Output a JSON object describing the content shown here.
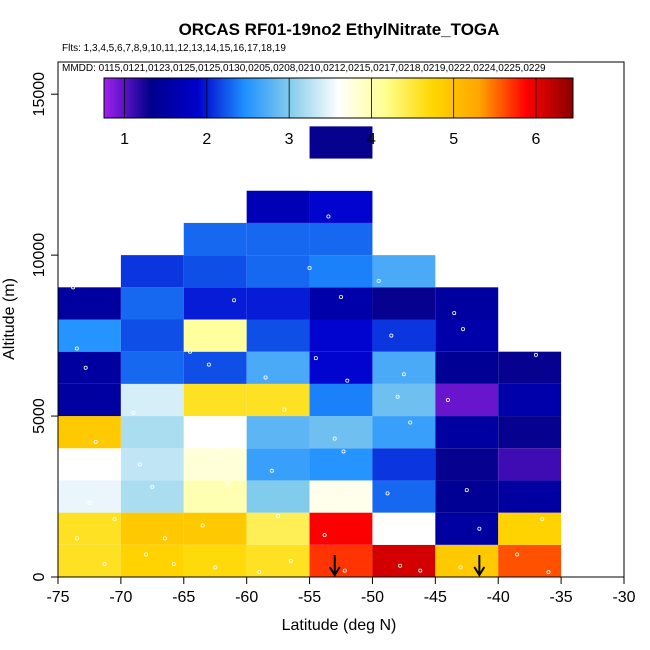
{
  "chart_data": {
    "type": "heatmap",
    "title": "ORCAS RF01-19no2 EthylNitrate_TOGA",
    "flights_label": "Flts: 1,3,4,5,6,7,8,9,10,11,12,13,14,15,16,17,18,19",
    "dates_label": "MMDD: 0115,0121,0123,0125,0125,0130,0205,0208,0210,0212,0215,0217,0218,0219,0222,0224,0225,0229",
    "xlabel": "Latitude (deg N)",
    "ylabel": "Altitude (m)",
    "xlim": [
      -75,
      -30
    ],
    "ylim": [
      0,
      16000
    ],
    "x_ticks": [
      -75,
      -70,
      -65,
      -60,
      -55,
      -50,
      -45,
      -40,
      -35,
      -30
    ],
    "y_ticks": [
      0,
      5000,
      10000,
      15000
    ],
    "colorbar": {
      "min": 0.75,
      "max": 6.45,
      "ticks": [
        1,
        2,
        3,
        4,
        5,
        6
      ],
      "colors": [
        "#a020f0",
        "#00008b",
        "#0000cd",
        "#1e90ff",
        "#87ceeb",
        "#ffffff",
        "#ffff90",
        "#ffd700",
        "#ffa500",
        "#ff0000",
        "#8b0000"
      ]
    },
    "bin_width_deg": 5,
    "bin_height_m": 1000,
    "columns": [
      {
        "lon_min": -75,
        "cells": [
          4.6,
          4.6,
          3.5,
          3.6,
          4.9,
          1.5,
          1.5,
          2.5,
          1.5
        ]
      },
      {
        "lon_min": -70,
        "cells": [
          4.8,
          4.9,
          3.2,
          3.3,
          3.2,
          3.4,
          2.3,
          2.2,
          2.3,
          2.1
        ]
      },
      {
        "lon_min": -65,
        "cells": [
          4.7,
          4.9,
          4.0,
          3.8,
          3.6,
          4.6,
          2.2,
          4.1,
          2.0,
          2.2,
          2.3
        ]
      },
      {
        "lon_min": -60,
        "cells": [
          4.6,
          4.4,
          3.0,
          2.6,
          2.8,
          4.6,
          2.7,
          2.2,
          2.0,
          2.3,
          2.3,
          1.7
        ]
      },
      {
        "lon_min": -55,
        "cells": [
          5.7,
          5.9,
          3.7,
          2.5,
          2.9,
          2.4,
          1.9,
          1.9,
          1.6,
          2.4,
          2.3,
          1.9,
          3.6,
          1.3
        ]
      },
      {
        "lon_min": -50,
        "cells": [
          6.1,
          3.6,
          2.3,
          2.1,
          2.6,
          2.9,
          2.7,
          2.1,
          1.3,
          2.7
        ]
      },
      {
        "lon_min": -45,
        "cells": [
          4.9,
          1.5,
          1.4,
          1.3,
          1.5,
          0.95,
          1.4,
          1.6,
          1.5
        ]
      },
      {
        "lon_min": -40,
        "cells": [
          5.6,
          4.8,
          1.5,
          1.1,
          1.3,
          1.6,
          1.3
        ]
      }
    ],
    "sample_points": [
      {
        "lat": -73.8,
        "alt": 9000
      },
      {
        "lat": -73.5,
        "alt": 7100
      },
      {
        "lat": -72.8,
        "alt": 6500
      },
      {
        "lat": -72.0,
        "alt": 4200
      },
      {
        "lat": -71.5,
        "alt": 3800
      },
      {
        "lat": -72.5,
        "alt": 2300
      },
      {
        "lat": -73.5,
        "alt": 1200
      },
      {
        "lat": -71.3,
        "alt": 400
      },
      {
        "lat": -70.5,
        "alt": 1800
      },
      {
        "lat": -69.0,
        "alt": 5100
      },
      {
        "lat": -68.5,
        "alt": 3500
      },
      {
        "lat": -67.5,
        "alt": 2800
      },
      {
        "lat": -66.5,
        "alt": 1200
      },
      {
        "lat": -65.8,
        "alt": 400
      },
      {
        "lat": -68.0,
        "alt": 700
      },
      {
        "lat": -64.5,
        "alt": 7000
      },
      {
        "lat": -63.0,
        "alt": 6600
      },
      {
        "lat": -62.0,
        "alt": 4000
      },
      {
        "lat": -61.5,
        "alt": 2900
      },
      {
        "lat": -63.5,
        "alt": 1600
      },
      {
        "lat": -62.5,
        "alt": 300
      },
      {
        "lat": -61.0,
        "alt": 8600
      },
      {
        "lat": -58.5,
        "alt": 6200
      },
      {
        "lat": -57.0,
        "alt": 5200
      },
      {
        "lat": -58.0,
        "alt": 3300
      },
      {
        "lat": -57.5,
        "alt": 1900
      },
      {
        "lat": -56.5,
        "alt": 500
      },
      {
        "lat": -59.0,
        "alt": 150
      },
      {
        "lat": -55.0,
        "alt": 9600
      },
      {
        "lat": -54.5,
        "alt": 6800
      },
      {
        "lat": -53.5,
        "alt": 11200
      },
      {
        "lat": -52.5,
        "alt": 8700
      },
      {
        "lat": -52.0,
        "alt": 6100
      },
      {
        "lat": -53.0,
        "alt": 4300
      },
      {
        "lat": -52.3,
        "alt": 3900
      },
      {
        "lat": -51.8,
        "alt": 2600
      },
      {
        "lat": -53.8,
        "alt": 1300
      },
      {
        "lat": -52.2,
        "alt": 200
      },
      {
        "lat": -49.5,
        "alt": 9200
      },
      {
        "lat": -48.5,
        "alt": 7500
      },
      {
        "lat": -47.5,
        "alt": 6300
      },
      {
        "lat": -48.0,
        "alt": 5600
      },
      {
        "lat": -47.0,
        "alt": 4800
      },
      {
        "lat": -48.8,
        "alt": 2600
      },
      {
        "lat": -49.2,
        "alt": 1300
      },
      {
        "lat": -47.8,
        "alt": 350
      },
      {
        "lat": -46.2,
        "alt": 200
      },
      {
        "lat": -43.5,
        "alt": 8200
      },
      {
        "lat": -42.8,
        "alt": 7700
      },
      {
        "lat": -44.0,
        "alt": 5500
      },
      {
        "lat": -42.5,
        "alt": 2700
      },
      {
        "lat": -41.5,
        "alt": 1500
      },
      {
        "lat": -43.0,
        "alt": 300
      },
      {
        "lat": -37.0,
        "alt": 6900
      },
      {
        "lat": -36.5,
        "alt": 1800
      },
      {
        "lat": -38.5,
        "alt": 700
      },
      {
        "lat": -36.0,
        "alt": 150
      }
    ],
    "arrows_at_lat": [
      -53.0,
      -41.5
    ]
  }
}
